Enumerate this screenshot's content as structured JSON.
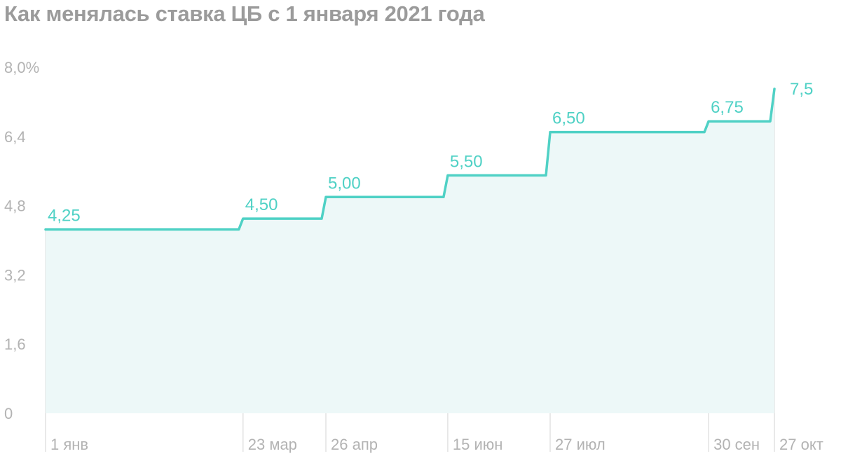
{
  "chart_data": {
    "type": "area",
    "title": "Как менялась ставка ЦБ с 1 января 2021 года",
    "xlabel": "",
    "ylabel": "",
    "ylim": [
      0,
      8
    ],
    "y_ticks": [
      "0",
      "1,6",
      "3,2",
      "4,8",
      "6,4",
      "8,0%"
    ],
    "y_tick_values": [
      0,
      1.6,
      3.2,
      4.8,
      6.4,
      8.0
    ],
    "x_dates": [
      "2021-01-01",
      "2021-03-23",
      "2021-04-26",
      "2021-06-15",
      "2021-07-27",
      "2021-09-30",
      "2021-10-27"
    ],
    "categories": [
      "1 янв",
      "23 мар",
      "26 апр",
      "15 июн",
      "27 июл",
      "30 сен",
      "27 окт"
    ],
    "values": [
      4.25,
      4.5,
      5.0,
      5.5,
      6.5,
      6.75,
      7.5
    ],
    "value_labels": [
      "4,25",
      "4,50",
      "5,00",
      "5,50",
      "6,50",
      "6,75",
      "7,5"
    ],
    "grid": false,
    "legend": "none"
  },
  "colors": {
    "line": "#4fd1c5",
    "fill": "#edf8f8",
    "axis_text": "#b3b3b3",
    "title": "#9b9b9b",
    "divider": "#e2e2e2"
  }
}
